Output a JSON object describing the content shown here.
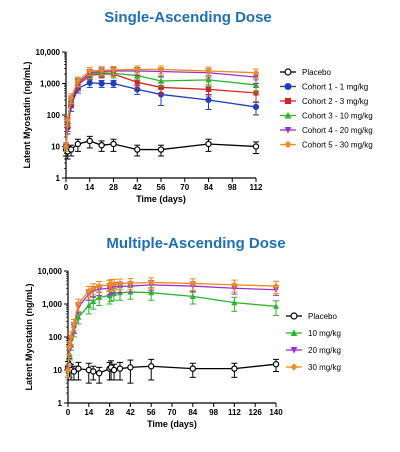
{
  "chart_data": [
    {
      "type": "line",
      "title": "Single-Ascending Dose",
      "xlabel": "Time (days)",
      "ylabel": "Latent Myostatin (ng/mL)",
      "yscale": "log",
      "ylim": [
        1,
        10000
      ],
      "xlim": [
        0,
        112
      ],
      "xticks": [
        0,
        14,
        28,
        42,
        56,
        70,
        84,
        98,
        112
      ],
      "yticks": [
        1,
        10,
        100,
        1000,
        10000
      ],
      "ytick_labels": [
        "1",
        "10",
        "100",
        "1,000",
        "10,000"
      ],
      "legend": "right",
      "series": [
        {
          "name": "Placebo",
          "color": "#000000",
          "marker": "open-circle",
          "x": [
            0,
            1,
            3,
            7,
            14,
            21,
            28,
            42,
            56,
            84,
            112
          ],
          "y": [
            8,
            7,
            8,
            12,
            15,
            11,
            12,
            8,
            8,
            12,
            10
          ],
          "err": [
            3,
            3,
            3,
            5,
            6,
            4,
            5,
            3,
            3,
            5,
            4
          ]
        },
        {
          "name": "Cohort 1 - 1 mg/kg",
          "color": "#1f3fbf",
          "marker": "filled-circle",
          "x": [
            0,
            1,
            3,
            7,
            14,
            21,
            28,
            42,
            56,
            84,
            112
          ],
          "y": [
            10,
            40,
            200,
            700,
            1050,
            1000,
            1000,
            650,
            450,
            300,
            180
          ],
          "err": [
            3,
            15,
            70,
            200,
            300,
            250,
            250,
            200,
            250,
            150,
            80
          ]
        },
        {
          "name": "Cohort 2 - 3 mg/kg",
          "color": "#e02020",
          "marker": "filled-square",
          "x": [
            0,
            1,
            3,
            7,
            14,
            21,
            28,
            42,
            56,
            84,
            112
          ],
          "y": [
            10,
            50,
            250,
            900,
            1800,
            2000,
            2000,
            1100,
            750,
            650,
            500
          ],
          "err": [
            3,
            20,
            80,
            300,
            500,
            500,
            500,
            400,
            300,
            250,
            250
          ]
        },
        {
          "name": "Cohort 3 - 10 mg/kg",
          "color": "#2bb52b",
          "marker": "filled-triangle",
          "x": [
            0,
            1,
            3,
            7,
            14,
            21,
            28,
            42,
            56,
            84,
            112
          ],
          "y": [
            10,
            60,
            300,
            1100,
            2000,
            2200,
            2100,
            1800,
            1200,
            1300,
            900
          ],
          "err": [
            3,
            20,
            100,
            350,
            600,
            600,
            600,
            500,
            400,
            500,
            400
          ]
        },
        {
          "name": "Cohort 4 - 20 mg/kg",
          "color": "#9b30d0",
          "marker": "filled-triangle-down",
          "x": [
            0,
            1,
            3,
            7,
            14,
            21,
            28,
            42,
            56,
            84,
            112
          ],
          "y": [
            10,
            60,
            300,
            1000,
            2200,
            2400,
            2500,
            2500,
            2400,
            2200,
            1600
          ],
          "err": [
            3,
            20,
            100,
            350,
            600,
            700,
            700,
            700,
            700,
            700,
            600
          ]
        },
        {
          "name": "Cohort 5 - 30 mg/kg",
          "color": "#f08a1a",
          "marker": "filled-diamond",
          "x": [
            0,
            1,
            3,
            7,
            14,
            21,
            28,
            42,
            56,
            84,
            112
          ],
          "y": [
            10,
            70,
            350,
            1200,
            2500,
            2600,
            2700,
            2800,
            2800,
            2500,
            2200
          ],
          "err": [
            3,
            25,
            120,
            400,
            700,
            800,
            800,
            800,
            800,
            800,
            700
          ]
        }
      ]
    },
    {
      "type": "line",
      "title": "Multiple-Ascending Dose",
      "xlabel": "Time (days)",
      "ylabel": "Latent Myostatin (ng/mL)",
      "yscale": "log",
      "ylim": [
        1,
        10000
      ],
      "xlim": [
        0,
        140
      ],
      "xticks": [
        0,
        14,
        28,
        42,
        56,
        70,
        84,
        98,
        112,
        126,
        140
      ],
      "yticks": [
        1,
        10,
        100,
        1000,
        10000
      ],
      "ytick_labels": [
        "1",
        "10",
        "100",
        "1,000",
        "10,000"
      ],
      "legend": "right",
      "series": [
        {
          "name": "Placebo",
          "color": "#000000",
          "marker": "open-circle",
          "x": [
            0,
            1,
            2,
            4,
            7,
            14,
            17,
            21,
            28,
            29,
            31,
            35,
            42,
            56,
            84,
            112,
            140
          ],
          "y": [
            12,
            14,
            10,
            9,
            11,
            10,
            9,
            8,
            11,
            12,
            10,
            11,
            12,
            13,
            11,
            11,
            15
          ],
          "err": [
            6,
            8,
            5,
            4,
            6,
            6,
            4,
            4,
            6,
            7,
            5,
            6,
            8,
            8,
            5,
            5,
            6
          ]
        },
        {
          "name": "10 mg/kg",
          "color": "#2bb52b",
          "marker": "filled-triangle",
          "x": [
            0,
            1,
            2,
            4,
            7,
            14,
            17,
            21,
            28,
            29,
            31,
            35,
            42,
            56,
            84,
            112,
            140
          ],
          "y": [
            10,
            30,
            60,
            150,
            400,
            900,
            1200,
            1600,
            1800,
            2000,
            2100,
            2200,
            2300,
            2200,
            1700,
            1100,
            850
          ],
          "err": [
            4,
            10,
            20,
            50,
            150,
            400,
            500,
            700,
            800,
            800,
            800,
            900,
            900,
            900,
            700,
            500,
            400
          ]
        },
        {
          "name": "20 mg/kg",
          "color": "#9b30d0",
          "marker": "filled-triangle-down",
          "x": [
            0,
            1,
            2,
            4,
            7,
            14,
            17,
            21,
            28,
            29,
            31,
            35,
            42,
            56,
            84,
            112,
            140
          ],
          "y": [
            10,
            40,
            80,
            200,
            800,
            2000,
            2500,
            2800,
            3000,
            3200,
            3300,
            3400,
            3500,
            3800,
            3500,
            3000,
            2700
          ],
          "err": [
            4,
            15,
            30,
            70,
            300,
            700,
            900,
            1000,
            1100,
            1100,
            1100,
            1200,
            1200,
            1300,
            1200,
            1000,
            900
          ]
        },
        {
          "name": "30 mg/kg",
          "color": "#f08a1a",
          "marker": "filled-diamond",
          "x": [
            0,
            1,
            2,
            4,
            7,
            14,
            17,
            21,
            28,
            29,
            31,
            35,
            42,
            56,
            84,
            112,
            140
          ],
          "y": [
            10,
            50,
            100,
            250,
            1000,
            2500,
            3000,
            3500,
            3800,
            4000,
            4100,
            4200,
            4300,
            4500,
            4200,
            3800,
            3500
          ],
          "err": [
            4,
            20,
            40,
            90,
            400,
            900,
            1100,
            1300,
            1400,
            1500,
            1500,
            1500,
            1600,
            1700,
            1600,
            1500,
            1400
          ]
        }
      ]
    }
  ],
  "titles": {
    "sad": "Single-Ascending Dose",
    "mad": "Multiple-Ascending Dose",
    "color": "#1f6fb5"
  }
}
